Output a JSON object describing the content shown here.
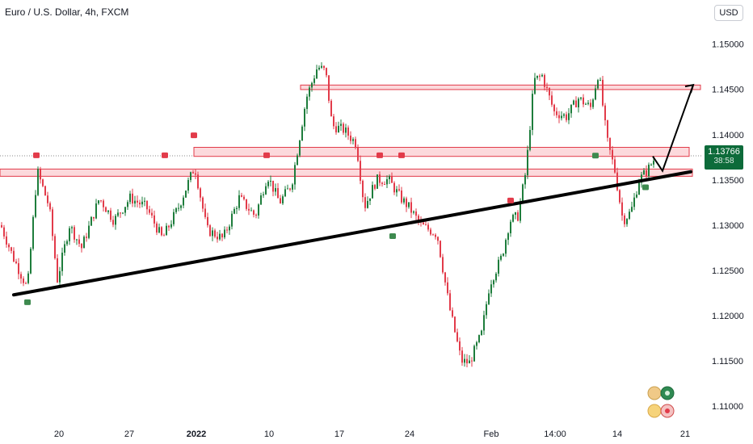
{
  "title": "Euro / U.S. Dollar, 4h, FXCM",
  "currency_button": "USD",
  "price_badge": {
    "price": "1.13766",
    "countdown": "38:58"
  },
  "colors": {
    "up": "#1e7d3c",
    "down": "#e23b4a",
    "trendline": "#000000",
    "zone_fill": "#fcd9dc",
    "zone_stroke": "#e23b4a",
    "badge": "#0d6b3a"
  },
  "chart_data": {
    "type": "candlestick",
    "ylim": [
      1.1085,
      1.1522
    ],
    "y_ticks": [
      "1.15000",
      "1.14500",
      "1.14000",
      "1.13500",
      "1.13000",
      "1.12500",
      "1.12000",
      "1.11500",
      "1.11000"
    ],
    "x_ticks": [
      {
        "label": "20",
        "bold": false
      },
      {
        "label": "27",
        "bold": false
      },
      {
        "label": "2022",
        "bold": true
      },
      {
        "label": "10",
        "bold": false
      },
      {
        "label": "17",
        "bold": false
      },
      {
        "label": "24",
        "bold": false
      },
      {
        "label": "Feb",
        "bold": false
      },
      {
        "label": "14:00",
        "bold": false
      },
      {
        "label": "14",
        "bold": false
      },
      {
        "label": "21",
        "bold": false
      }
    ],
    "path_closes": [
      {
        "x": 0,
        "y": 1.13
      },
      {
        "x": 15,
        "y": 1.1265
      },
      {
        "x": 33,
        "y": 1.123
      },
      {
        "x": 45,
        "y": 1.136
      },
      {
        "x": 60,
        "y": 1.132
      },
      {
        "x": 70,
        "y": 1.124
      },
      {
        "x": 85,
        "y": 1.13
      },
      {
        "x": 100,
        "y": 1.1275
      },
      {
        "x": 122,
        "y": 1.133
      },
      {
        "x": 140,
        "y": 1.1305
      },
      {
        "x": 160,
        "y": 1.133
      },
      {
        "x": 180,
        "y": 1.132
      },
      {
        "x": 200,
        "y": 1.1285
      },
      {
        "x": 220,
        "y": 1.132
      },
      {
        "x": 240,
        "y": 1.1365
      },
      {
        "x": 255,
        "y": 1.1295
      },
      {
        "x": 275,
        "y": 1.1285
      },
      {
        "x": 295,
        "y": 1.133
      },
      {
        "x": 315,
        "y": 1.131
      },
      {
        "x": 330,
        "y": 1.1355
      },
      {
        "x": 345,
        "y": 1.1325
      },
      {
        "x": 360,
        "y": 1.1345
      },
      {
        "x": 378,
        "y": 1.144
      },
      {
        "x": 392,
        "y": 1.1475
      },
      {
        "x": 402,
        "y": 1.147
      },
      {
        "x": 410,
        "y": 1.141
      },
      {
        "x": 425,
        "y": 1.1405
      },
      {
        "x": 440,
        "y": 1.139
      },
      {
        "x": 450,
        "y": 1.132
      },
      {
        "x": 465,
        "y": 1.135
      },
      {
        "x": 480,
        "y": 1.135
      },
      {
        "x": 495,
        "y": 1.133
      },
      {
        "x": 505,
        "y": 1.132
      },
      {
        "x": 520,
        "y": 1.13
      },
      {
        "x": 540,
        "y": 1.129
      },
      {
        "x": 555,
        "y": 1.121
      },
      {
        "x": 570,
        "y": 1.115
      },
      {
        "x": 580,
        "y": 1.1148
      },
      {
        "x": 595,
        "y": 1.118
      },
      {
        "x": 605,
        "y": 1.1235
      },
      {
        "x": 620,
        "y": 1.1265
      },
      {
        "x": 630,
        "y": 1.1305
      },
      {
        "x": 640,
        "y": 1.131
      },
      {
        "x": 650,
        "y": 1.136
      },
      {
        "x": 660,
        "y": 1.146
      },
      {
        "x": 670,
        "y": 1.1465
      },
      {
        "x": 685,
        "y": 1.1425
      },
      {
        "x": 700,
        "y": 1.142
      },
      {
        "x": 715,
        "y": 1.144
      },
      {
        "x": 730,
        "y": 1.143
      },
      {
        "x": 740,
        "y": 1.147
      },
      {
        "x": 750,
        "y": 1.1395
      },
      {
        "x": 760,
        "y": 1.136
      },
      {
        "x": 770,
        "y": 1.1305
      },
      {
        "x": 780,
        "y": 1.1315
      },
      {
        "x": 790,
        "y": 1.135
      },
      {
        "x": 800,
        "y": 1.136
      },
      {
        "x": 810,
        "y": 1.1375
      }
    ],
    "zones": [
      {
        "y1": 1.14548,
        "y2": 1.14498
      },
      {
        "y1": 1.1386,
        "y2": 1.1376
      },
      {
        "y1": 1.1362,
        "y2": 1.1354
      }
    ],
    "trendline": [
      {
        "x": 17,
        "y": 1.1223
      },
      {
        "x": 855,
        "y": 1.1359
      }
    ],
    "projection": [
      {
        "x": 808,
        "y": 1.1376
      },
      {
        "x": 820,
        "y": 1.136
      },
      {
        "x": 858,
        "y": 1.1455
      }
    ],
    "last_price": 1.13766,
    "fractal_highs": [
      {
        "x": 45,
        "y": 1.1375
      },
      {
        "x": 204,
        "y": 1.1375
      },
      {
        "x": 240,
        "y": 1.1397
      },
      {
        "x": 330,
        "y": 1.1375
      },
      {
        "x": 470,
        "y": 1.1375
      },
      {
        "x": 497,
        "y": 1.1375
      },
      {
        "x": 632,
        "y": 1.1325
      }
    ],
    "fractal_lows": [
      {
        "x": 34,
        "y": 1.1218
      },
      {
        "x": 486,
        "y": 1.1291
      },
      {
        "x": 737,
        "y": 1.138
      },
      {
        "x": 799,
        "y": 1.1345
      }
    ]
  }
}
